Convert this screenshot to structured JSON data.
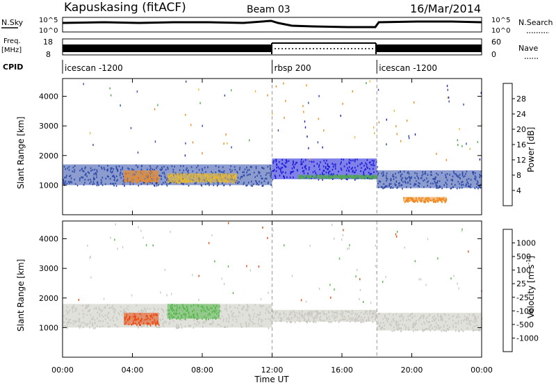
{
  "header": {
    "station": "Kapuskasing (fitACF)",
    "beam": "Beam 03",
    "date": "16/Mar/2014"
  },
  "top_panels": {
    "nsky_label": "N.Sky",
    "nsky_ticks": [
      "10^5",
      "10^0"
    ],
    "nsearch_label": "N.Search",
    "nsearch_ticks": [
      "10^5",
      "10^0"
    ],
    "freq_label": "Freq.",
    "freq_unit": "[MHz]",
    "freq_ticks": [
      "18",
      "8"
    ],
    "nave_label": "Nave",
    "nave_ticks": [
      "60",
      "0"
    ],
    "cpid_label": "CPID",
    "cpid_segments": [
      {
        "label": "icescan -1200",
        "start_hour": 0,
        "end_hour": 12
      },
      {
        "label": "rbsp 200",
        "start_hour": 12,
        "end_hour": 18
      },
      {
        "label": "icescan -1200",
        "start_hour": 18,
        "end_hour": 24
      }
    ]
  },
  "x_axis": {
    "title": "Time UT",
    "ticks": [
      "00:00",
      "04:00",
      "08:00",
      "12:00",
      "16:00",
      "20:00",
      "00:00"
    ]
  },
  "power_colorbar": {
    "title": "Power [dB]",
    "ticks": [
      "4",
      "8",
      "12",
      "16",
      "20",
      "24",
      "28"
    ],
    "colors": [
      "#1a1ad8",
      "#2d4aa8",
      "#3d7c6a",
      "#52a852",
      "#92c850",
      "#e8b830",
      "#ee8a20",
      "#ee5518",
      "#e41a10",
      "#c80000"
    ]
  },
  "velocity_colorbar": {
    "title": "Velocity [m s^-1]",
    "ticks": [
      "1000",
      "500",
      "100",
      "25",
      "-25",
      "-100",
      "-500",
      "-1000"
    ],
    "colors": [
      "#1e3aa0",
      "#3a6fb0",
      "#3f9a6a",
      "#55b84a",
      "#c8c8c0",
      "#c8c8c0",
      "#f2c040",
      "#ee8a20",
      "#e84a10",
      "#e01010"
    ]
  },
  "chart_data": [
    {
      "type": "heatmap",
      "title": "",
      "xlabel": "Time UT",
      "ylabel": "Slant Range [km]",
      "xlim_hours": [
        0,
        24
      ],
      "ylim_km": [
        0,
        4600
      ],
      "y_ticks": [
        1000,
        2000,
        3000,
        4000
      ],
      "quantity": "Power [dB]",
      "bands": [
        {
          "t0": 0.0,
          "t1": 12.0,
          "r0": 1000,
          "r1": 1700,
          "level": "low-mid",
          "color": "#2d4aa8"
        },
        {
          "t0": 3.5,
          "t1": 5.5,
          "r0": 1100,
          "r1": 1500,
          "level": "high",
          "color": "#ee8a20"
        },
        {
          "t0": 6.0,
          "t1": 10.0,
          "r0": 1100,
          "r1": 1400,
          "level": "mid",
          "color": "#e8b830"
        },
        {
          "t0": 12.0,
          "t1": 18.0,
          "r0": 1200,
          "r1": 1900,
          "level": "low",
          "color": "#1a1ad8"
        },
        {
          "t0": 13.5,
          "t1": 18.0,
          "r0": 1250,
          "r1": 1350,
          "level": "mid",
          "color": "#52a852"
        },
        {
          "t0": 18.0,
          "t1": 24.0,
          "r0": 900,
          "r1": 1500,
          "level": "low",
          "color": "#2d4aa8"
        },
        {
          "t0": 19.5,
          "t1": 22.0,
          "r0": 450,
          "r1": 600,
          "level": "high",
          "color": "#ee8a20"
        }
      ]
    },
    {
      "type": "heatmap",
      "title": "",
      "xlabel": "Time UT",
      "ylabel": "Slant Range [km]",
      "xlim_hours": [
        0,
        24
      ],
      "ylim_km": [
        0,
        4600
      ],
      "y_ticks": [
        1000,
        2000,
        3000,
        4000
      ],
      "quantity": "Velocity [m s^-1]",
      "bands": [
        {
          "t0": 0.0,
          "t1": 12.0,
          "r0": 1000,
          "r1": 1800,
          "level": "ground-scatter",
          "color": "#c8c8c0"
        },
        {
          "t0": 3.5,
          "t1": 5.5,
          "r0": 1100,
          "r1": 1500,
          "level": "-500",
          "color": "#e84a10"
        },
        {
          "t0": 6.0,
          "t1": 9.0,
          "r0": 1300,
          "r1": 1800,
          "level": "100",
          "color": "#55b84a"
        },
        {
          "t0": 12.0,
          "t1": 18.0,
          "r0": 1200,
          "r1": 1600,
          "level": "ground-scatter",
          "color": "#c8c8c0"
        },
        {
          "t0": 18.0,
          "t1": 24.0,
          "r0": 900,
          "r1": 1500,
          "level": "ground-scatter",
          "color": "#c8c8c0"
        }
      ]
    }
  ]
}
